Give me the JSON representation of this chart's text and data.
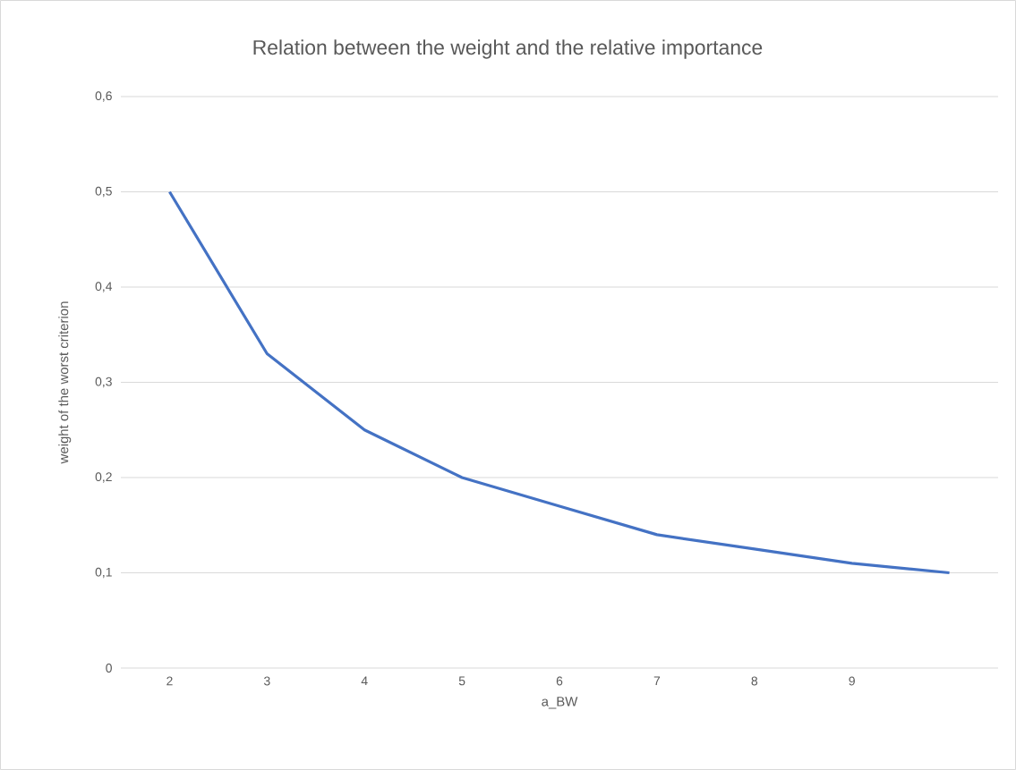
{
  "chart_data": {
    "type": "line",
    "title": "Relation between the weight and the relative importance",
    "xlabel": "a_BW",
    "ylabel": "weight of the worst criterion",
    "categories": [
      "2",
      "3",
      "4",
      "5",
      "6",
      "7",
      "8",
      "9",
      null
    ],
    "series": [
      {
        "color": "#4472c4",
        "values": [
          0.5,
          0.33,
          0.25,
          0.2,
          0.17,
          0.14,
          0.125,
          0.11,
          0.1
        ]
      }
    ],
    "ylim": [
      0,
      0.6
    ],
    "yticks": [
      0,
      {
        "value": 0.1,
        "label": "0,1"
      },
      {
        "value": 0.2,
        "label": "0,2"
      },
      {
        "value": 0.3,
        "label": "0,3"
      },
      {
        "value": 0.4,
        "label": "0,4"
      },
      {
        "value": 0.5,
        "label": "0,5"
      },
      {
        "value": 0.6,
        "label": "0,6"
      }
    ],
    "grid": "y"
  }
}
